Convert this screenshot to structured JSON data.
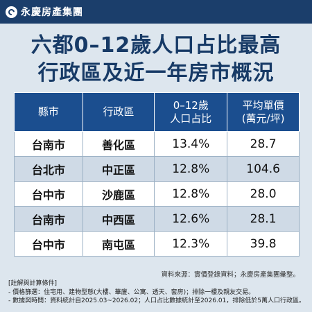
{
  "brand": {
    "name": "永慶房產集團",
    "icon": "yungching-logo-icon"
  },
  "title": {
    "line1": "六都0–12歲人口占比最高",
    "line2": "行政區及近一年房市概況"
  },
  "table": {
    "headers": {
      "city": "縣市",
      "district": "行政區",
      "pop_share": [
        "0–12歲",
        "人口占比"
      ],
      "price": [
        "平均單價",
        "(萬元/坪)"
      ]
    },
    "rows": [
      {
        "city": "台南市",
        "district": "善化區",
        "share": "13.4%",
        "price": "28.7"
      },
      {
        "city": "台北市",
        "district": "中正區",
        "share": "12.8%",
        "price": "104.6"
      },
      {
        "city": "台中市",
        "district": "沙鹿區",
        "share": "12.8%",
        "price": "28.0"
      },
      {
        "city": "台南市",
        "district": "中西區",
        "share": "12.6%",
        "price": "28.1"
      },
      {
        "city": "台中市",
        "district": "南屯區",
        "share": "12.3%",
        "price": "39.8"
      }
    ]
  },
  "source": "資料來源：實價登錄資料；永慶房產集團彙整。",
  "notes": {
    "heading": "[註解與計算條件]",
    "line1": "- 價格篩選：住宅用、建物型態(大樓、華廈、公寓、透天、套房)；排除一樓及親友交易。",
    "line2": "- 數據與時間：資料統計自2025.03~2026.02；人口占比數據統計至2026.01，排除低於5萬人口行政區。"
  },
  "colors": {
    "header_bg": "#1b3e6b",
    "table_head": "#1b4e8f",
    "title": "#173a66",
    "page_bg": "#dde6ee",
    "row_alt": "#cfdae6"
  }
}
